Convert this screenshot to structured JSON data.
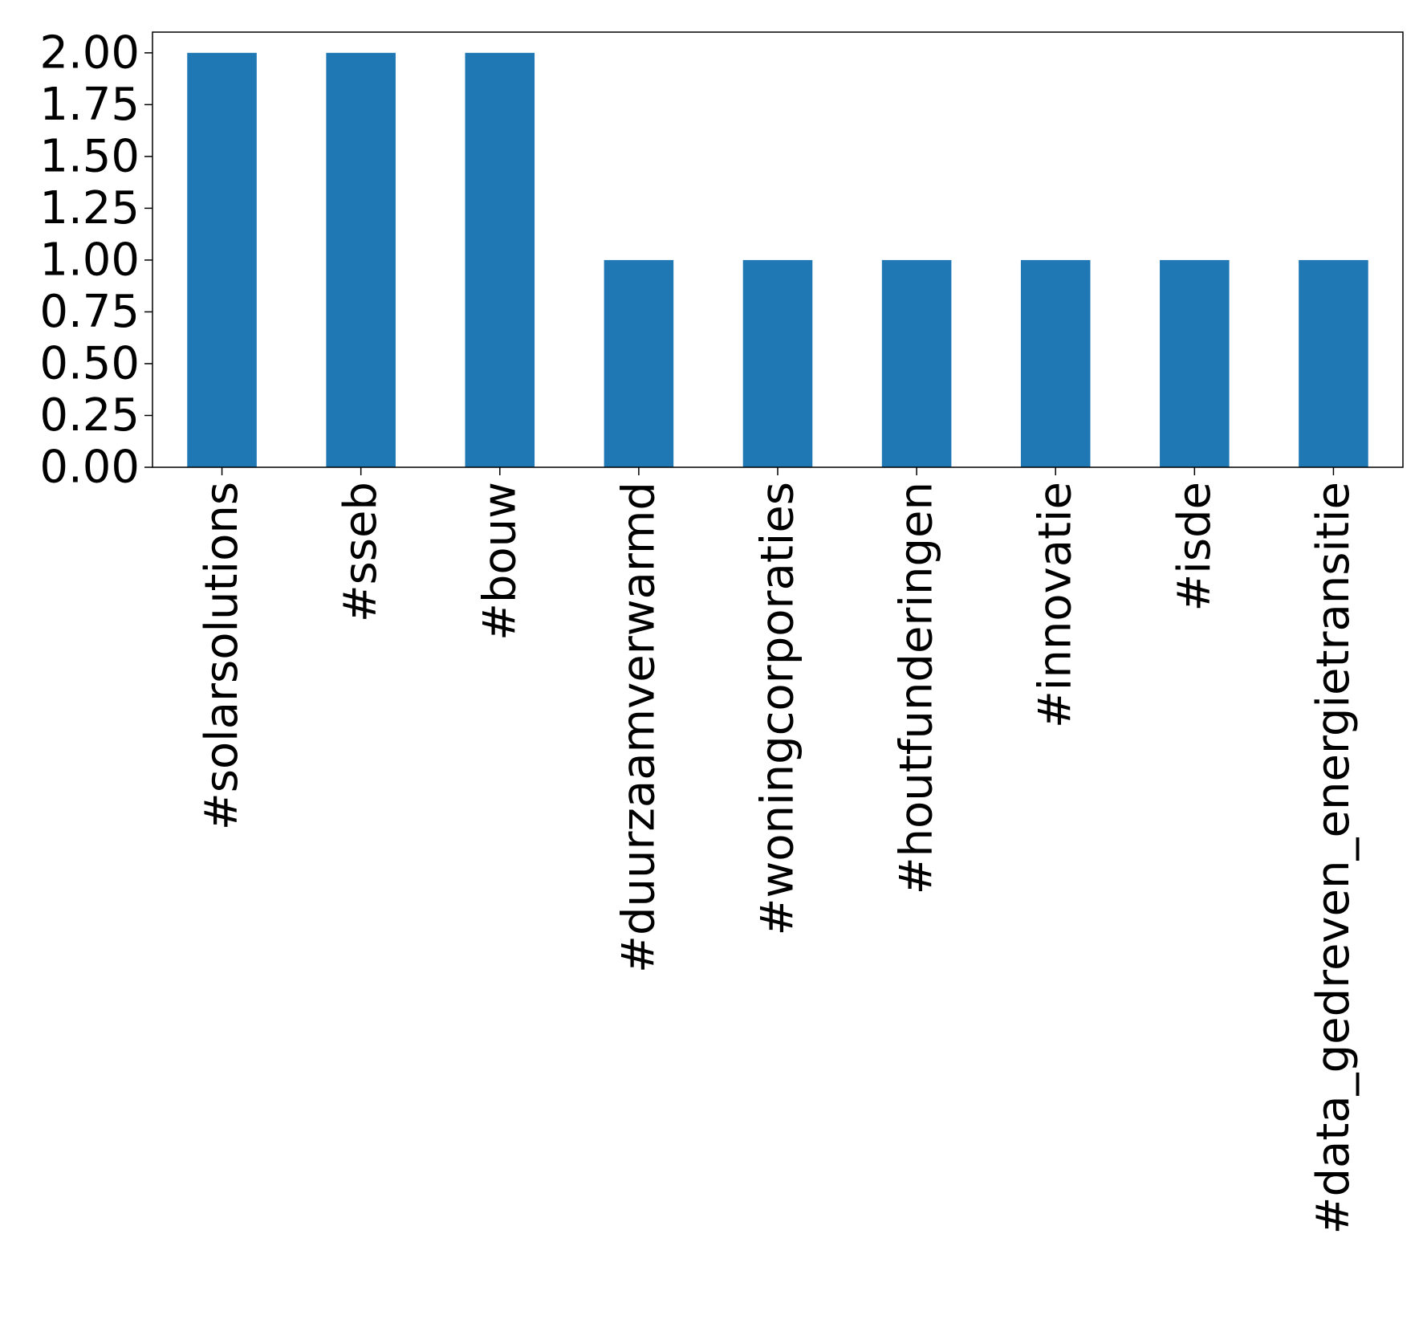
{
  "chart_data": {
    "type": "bar",
    "categories": [
      "#solarsolutions",
      "#sseb",
      "#bouw",
      "#duurzaamverwarmd",
      "#woningcorporaties",
      "#houtfunderingen",
      "#innovatie",
      "#isde",
      "#data_gedreven_energietransitie"
    ],
    "values": [
      2,
      2,
      2,
      1,
      1,
      1,
      1,
      1,
      1
    ],
    "ylim": [
      0,
      2.1
    ],
    "yticks": [
      "0.00",
      "0.25",
      "0.50",
      "0.75",
      "1.00",
      "1.25",
      "1.50",
      "1.75",
      "2.00"
    ],
    "title": "",
    "xlabel": "",
    "ylabel": "",
    "bar_color": "#1f77b4",
    "grid": false,
    "legend": "none"
  }
}
